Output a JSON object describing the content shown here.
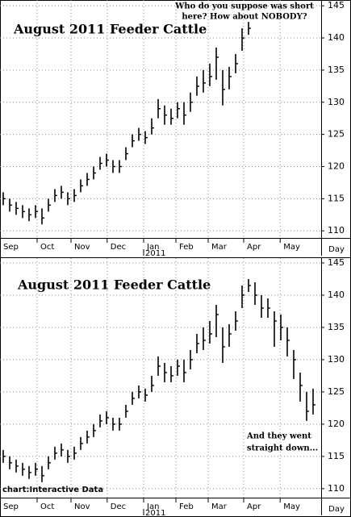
{
  "chart_data": [
    {
      "type": "ohlc",
      "title": "August 2011 Feeder Cattle",
      "color": "#000000",
      "title_color": "#1c1ca8",
      "annotation_color": "#e00000",
      "high": [
        116,
        115,
        114.5,
        114,
        113.5,
        114,
        113.5,
        115,
        116.5,
        117,
        116,
        116.5,
        118,
        119,
        120,
        121.5,
        122,
        121,
        121,
        123,
        125,
        126,
        125.5,
        127.5,
        130.5,
        129.5,
        129,
        130,
        130,
        131.5,
        134,
        135,
        136,
        138.5,
        135,
        135.5,
        137.5,
        141.5,
        142.5
      ],
      "low": [
        114,
        113,
        112.5,
        112,
        111.5,
        112,
        111,
        113,
        114.5,
        115,
        114,
        114.5,
        116,
        117,
        118,
        119.5,
        120,
        119,
        119,
        121,
        123,
        124,
        123.5,
        125,
        127.5,
        126.5,
        126.5,
        127.5,
        126.5,
        128.5,
        131,
        131.5,
        132.5,
        133.5,
        129.5,
        132,
        134.5,
        138,
        140.5
      ],
      "close": [
        115,
        114,
        113.5,
        113,
        112.5,
        113,
        112,
        114,
        115.5,
        116,
        115,
        115.5,
        117,
        118,
        119,
        120.5,
        121,
        120,
        120,
        122,
        124,
        125,
        124.5,
        126,
        129,
        128,
        127.5,
        129,
        128,
        130,
        132.5,
        133,
        134,
        137,
        132,
        134,
        136,
        140,
        141.5
      ],
      "xlim": [
        -0.5,
        49.25
      ],
      "xticks": [
        {
          "value": -0.5,
          "label": "Sep"
        },
        {
          "value": 5.25,
          "label": "Oct"
        },
        {
          "value": 10.5,
          "label": "Nov"
        },
        {
          "value": 16.1,
          "label": "Dec"
        },
        {
          "value": 21.75,
          "label": "Jan"
        },
        {
          "value": 26.75,
          "label": "Feb"
        },
        {
          "value": 31.75,
          "label": "Mar"
        },
        {
          "value": 37.25,
          "label": "Apr"
        },
        {
          "value": 42.9,
          "label": "May"
        }
      ],
      "x_sublabel": "2011",
      "xlabel": "Day",
      "ylim": [
        108.9,
        145.9
      ],
      "yticks": [
        110,
        115,
        120,
        125,
        130,
        135,
        140,
        145
      ],
      "grid": true,
      "annotations": [
        "Who do you suppose was short",
        "here? How about NOBODY?"
      ]
    },
    {
      "type": "ohlc",
      "title": "August 2011 Feeder Cattle",
      "color": "#000000",
      "title_color": "#1c1ca8",
      "annotation_color": "#e00000",
      "high": [
        116,
        115,
        114.5,
        114,
        113.5,
        114,
        113.5,
        115,
        116.5,
        117,
        116,
        116.5,
        118,
        119,
        120,
        121.5,
        122,
        121,
        121,
        123,
        125,
        126,
        125.5,
        127.5,
        130.5,
        129.5,
        129,
        130,
        130,
        131.5,
        134,
        135,
        136,
        138.5,
        135,
        135.5,
        137.5,
        141.5,
        142.5,
        142,
        140,
        139.5,
        137.5,
        137,
        135,
        131.5,
        128,
        125,
        125.5
      ],
      "low": [
        114,
        113,
        112.5,
        112,
        111.5,
        112,
        111,
        113,
        114.5,
        115,
        114,
        114.5,
        116,
        117,
        118,
        119.5,
        120,
        119,
        119,
        121,
        123,
        124,
        123.5,
        125,
        127.5,
        126.5,
        126.5,
        127.5,
        126.5,
        128.5,
        131,
        131.5,
        132.5,
        133.5,
        129.5,
        132,
        134.5,
        138,
        140.5,
        138.5,
        136.5,
        136.5,
        132,
        133,
        130.5,
        127,
        123.5,
        120.5,
        121.5
      ],
      "close": [
        115,
        114,
        113.5,
        113,
        112.5,
        113,
        112,
        114,
        115.5,
        116,
        115,
        115.5,
        117,
        118,
        119,
        120.5,
        121,
        120,
        120,
        122,
        124,
        125,
        124.5,
        126,
        129,
        128,
        127.5,
        129,
        128,
        130,
        132.5,
        133,
        134,
        137,
        132,
        134,
        136,
        140,
        141.5,
        140,
        138,
        138,
        136,
        135,
        133,
        130,
        126,
        122,
        123
      ],
      "xlim": [
        -0.5,
        49.25
      ],
      "xticks": [
        {
          "value": -0.5,
          "label": "Sep"
        },
        {
          "value": 5.25,
          "label": "Oct"
        },
        {
          "value": 10.5,
          "label": "Nov"
        },
        {
          "value": 16.1,
          "label": "Dec"
        },
        {
          "value": 21.75,
          "label": "Jan"
        },
        {
          "value": 26.75,
          "label": "Feb"
        },
        {
          "value": 31.75,
          "label": "Mar"
        },
        {
          "value": 37.25,
          "label": "Apr"
        },
        {
          "value": 42.9,
          "label": "May"
        }
      ],
      "x_sublabel": "2011",
      "xlabel": "Day",
      "ylim": [
        108.6,
        145.75
      ],
      "yticks": [
        110,
        115,
        120,
        125,
        130,
        135,
        140,
        145
      ],
      "grid": true,
      "annotations": [
        "And they went",
        "straight down..."
      ],
      "source": "chart:Interactive Data"
    }
  ]
}
